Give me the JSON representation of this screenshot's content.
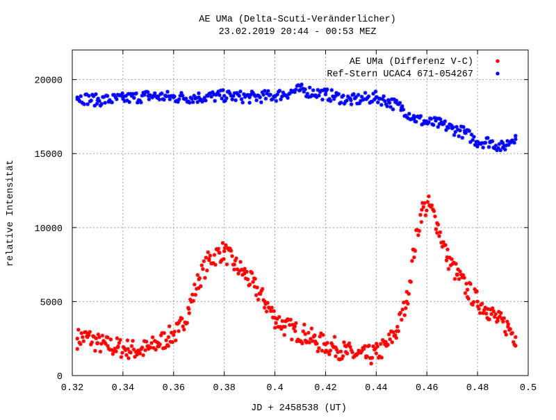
{
  "chart_data": {
    "type": "scatter",
    "title": "AE UMa (Delta-Scuti-Veränderlicher)",
    "subtitle": "23.02.2019 20:44 - 00:53 MEZ",
    "xlabel": "JD + 2458538 (UT)",
    "ylabel": "relative Intensität",
    "xlim": [
      0.32,
      0.5
    ],
    "ylim": [
      0,
      22000
    ],
    "xticks": [
      "0.32",
      "0.34",
      "0.36",
      "0.38",
      "0.4",
      "0.42",
      "0.44",
      "0.46",
      "0.48",
      "0.5"
    ],
    "xtick_values": [
      0.32,
      0.34,
      0.36,
      0.38,
      0.4,
      0.42,
      0.44,
      0.46,
      0.48,
      0.5
    ],
    "yticks": [
      "0",
      "5000",
      "10000",
      "15000",
      "20000"
    ],
    "ytick_values": [
      0,
      5000,
      10000,
      15000,
      20000
    ],
    "grid": true,
    "legend_position": "top-right",
    "series": [
      {
        "name": "AE UMa (Differenz V-C)",
        "color": "#ff0000",
        "x": [
          0.322,
          0.326,
          0.33,
          0.334,
          0.338,
          0.342,
          0.346,
          0.35,
          0.354,
          0.358,
          0.362,
          0.366,
          0.37,
          0.374,
          0.378,
          0.38,
          0.384,
          0.388,
          0.392,
          0.396,
          0.4,
          0.404,
          0.408,
          0.412,
          0.416,
          0.42,
          0.424,
          0.428,
          0.432,
          0.436,
          0.44,
          0.444,
          0.448,
          0.452,
          0.455,
          0.458,
          0.461,
          0.464,
          0.468,
          0.472,
          0.476,
          0.48,
          0.484,
          0.488,
          0.492,
          0.495
        ],
        "y": [
          2500,
          2600,
          2200,
          2000,
          1900,
          1800,
          1700,
          1800,
          2200,
          2600,
          3000,
          4500,
          6500,
          7800,
          8300,
          8400,
          7500,
          6900,
          6000,
          5000,
          3900,
          3300,
          3000,
          2800,
          2300,
          2100,
          1900,
          1600,
          1400,
          1300,
          1500,
          2000,
          3000,
          5000,
          8500,
          11200,
          11500,
          10300,
          8000,
          6800,
          5800,
          5000,
          4500,
          3700,
          3300,
          2600
        ]
      },
      {
        "name": "Ref-Stern UCAC4 671-054267",
        "color": "#0000ff",
        "x": [
          0.322,
          0.33,
          0.34,
          0.35,
          0.36,
          0.37,
          0.38,
          0.39,
          0.4,
          0.41,
          0.42,
          0.43,
          0.44,
          0.445,
          0.45,
          0.455,
          0.46,
          0.465,
          0.47,
          0.475,
          0.48,
          0.485,
          0.49,
          0.495
        ],
        "y": [
          18800,
          18600,
          18700,
          18900,
          18800,
          18800,
          18900,
          18800,
          18900,
          19300,
          19000,
          18600,
          18800,
          18500,
          18100,
          17400,
          17100,
          17000,
          16700,
          16400,
          15800,
          15800,
          15400,
          16200
        ]
      }
    ]
  }
}
